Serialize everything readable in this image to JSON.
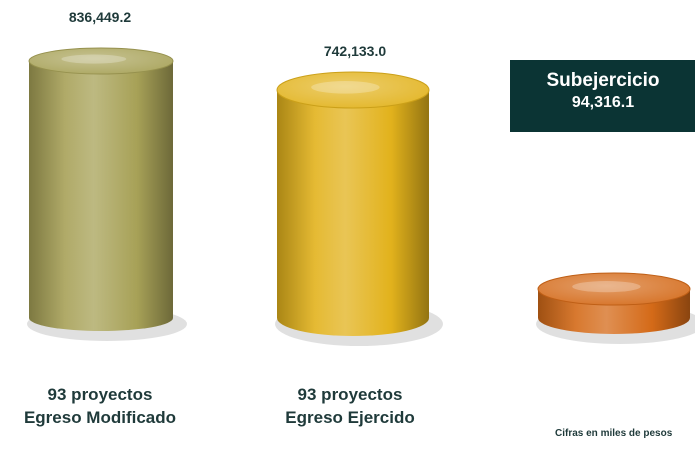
{
  "colors": {
    "modified": "#a7a157",
    "executed": "#e2b21c",
    "underspend": "#d46a18",
    "callout_bg": "#0b3434",
    "text": "#1f3a3a"
  },
  "chart_data": {
    "type": "bar",
    "style": "3d-cylinder",
    "categories": [
      "93 proyectos Egreso Modificado",
      "93 proyectos Egreso Ejercido",
      "Subejercicio"
    ],
    "values": [
      836449.2,
      742133.0,
      94316.1
    ],
    "value_labels": [
      "836,449.2",
      "742,133.0",
      "94,316.1"
    ],
    "bars": [
      {
        "line1": "93 proyectos",
        "line2": "Egreso Modificado",
        "value": 836449.2,
        "value_label": "836,449.2",
        "color": "modified"
      },
      {
        "line1": "93 proyectos",
        "line2": "Egreso Ejercido",
        "value": 742133.0,
        "value_label": "742,133.0",
        "color": "executed"
      },
      {
        "line1": "",
        "line2": "",
        "value": 94316.1,
        "value_label": "94,316.1",
        "color": "underspend"
      }
    ],
    "callout": {
      "title": "Subejercicio",
      "value": "94,316.1"
    },
    "footnote": "Cifras en miles de pesos",
    "grid": false,
    "legend": "none"
  }
}
